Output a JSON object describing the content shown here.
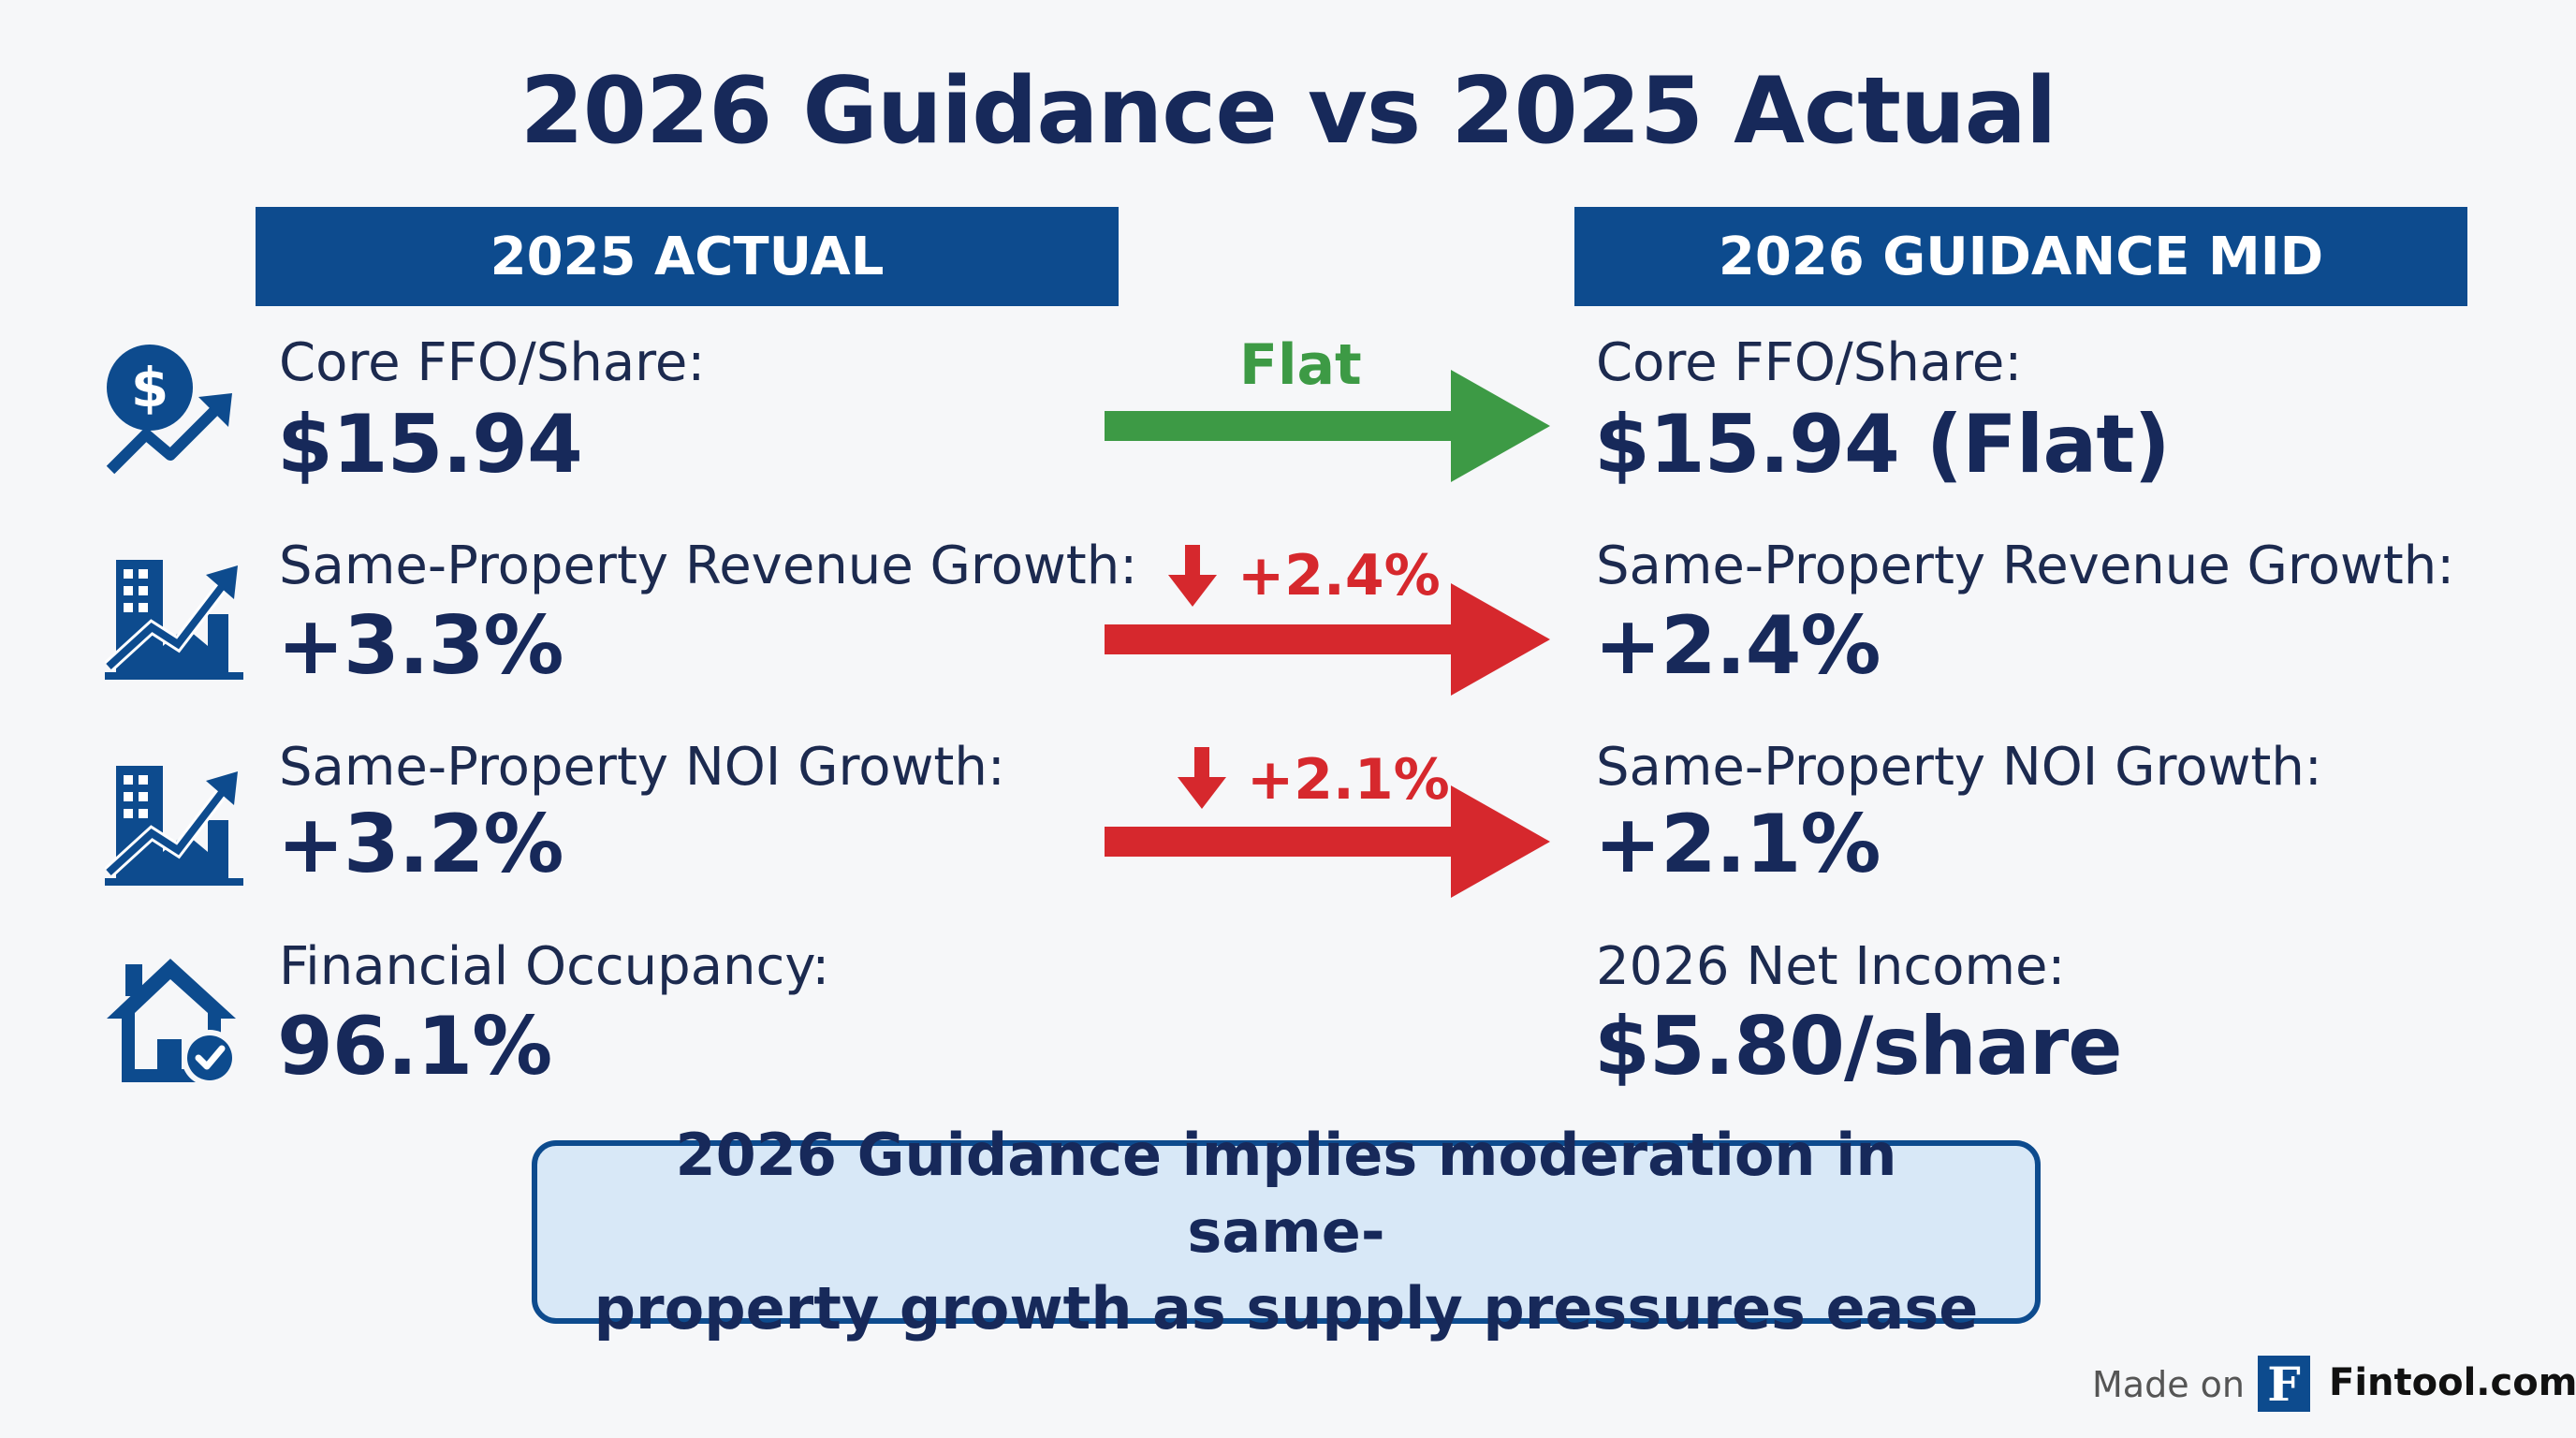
{
  "title": "2026 Guidance vs 2025 Actual",
  "columns": {
    "left": "2025 ACTUAL",
    "right": "2026 GUIDANCE MID"
  },
  "rows": [
    {
      "left_label": "Core FFO/Share:",
      "left_value": "$15.94",
      "right_label": "Core FFO/Share:",
      "right_value": "$15.94 (Flat)",
      "change": "Flat",
      "direction": "flat",
      "icon": "dollar-growth-icon"
    },
    {
      "left_label": "Same-Property Revenue Growth:",
      "left_value": "+3.3%",
      "right_label": "Same-Property Revenue Growth:",
      "right_value": "+2.4%",
      "change": "+2.4%",
      "direction": "down",
      "icon": "building-growth-icon"
    },
    {
      "left_label": "Same-Property NOI Growth:",
      "left_value": "+3.2%",
      "right_label": "Same-Property NOI Growth:",
      "right_value": "+2.1%",
      "change": "+2.1%",
      "direction": "down",
      "icon": "building-growth-icon"
    },
    {
      "left_label": "Financial Occupancy:",
      "left_value": "96.1%",
      "right_label": "2026 Net Income:",
      "right_value": "$5.80/share",
      "icon": "house-check-icon"
    }
  ],
  "summary": {
    "line1": "2026 Guidance implies moderation in same-",
    "line2": "property growth as supply pressures ease"
  },
  "footer": {
    "made_on": "Made on",
    "logo_letter": "F",
    "brand": "Fintool.com"
  },
  "colors": {
    "navy": "#0d4b8e",
    "green": "#3d9a45",
    "red": "#d6282d",
    "text": "#17295a"
  }
}
